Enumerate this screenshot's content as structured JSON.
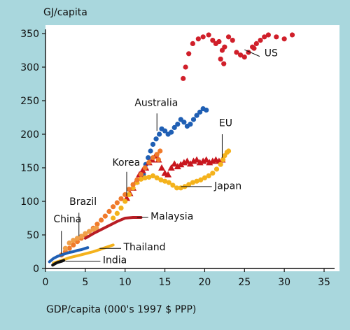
{
  "chart_data": {
    "type": "scatter",
    "ylabel": "GJ/capita",
    "xlabel": "GDP/capita (000's 1997 $ PPP)",
    "xlim": [
      0,
      35
    ],
    "ylim": [
      0,
      350
    ],
    "xticks": [
      "0",
      "5",
      "10",
      "15",
      "20",
      "25",
      "30",
      "35"
    ],
    "yticks": [
      "0",
      "50",
      "100",
      "150",
      "200",
      "250",
      "300",
      "350"
    ],
    "grid": false,
    "series": [
      {
        "name": "US",
        "color": "#d01f2a",
        "marker": "dot",
        "label_at": [
          27.5,
          316
        ],
        "points": [
          [
            17.3,
            283
          ],
          [
            17.6,
            300
          ],
          [
            18.0,
            320
          ],
          [
            18.5,
            335
          ],
          [
            19.2,
            342
          ],
          [
            19.8,
            345
          ],
          [
            20.5,
            348
          ],
          [
            21.0,
            340
          ],
          [
            21.4,
            335
          ],
          [
            21.8,
            338
          ],
          [
            22.2,
            325
          ],
          [
            22.5,
            330
          ],
          [
            23.0,
            345
          ],
          [
            23.5,
            340
          ],
          [
            24.0,
            322
          ],
          [
            24.5,
            318
          ],
          [
            25.0,
            315
          ],
          [
            25.5,
            322
          ],
          [
            26.0,
            330
          ],
          [
            26.5,
            335
          ],
          [
            27.0,
            340
          ],
          [
            27.5,
            345
          ],
          [
            28.0,
            348
          ],
          [
            29.0,
            345
          ],
          [
            30.0,
            342
          ],
          [
            31.0,
            348
          ],
          [
            22.0,
            312
          ],
          [
            22.4,
            305
          ],
          [
            26.2,
            328
          ]
        ]
      },
      {
        "name": "Australia",
        "color": "#1f5fb4",
        "marker": "dot",
        "label_at": [
          11.2,
          242
        ],
        "points": [
          [
            12.3,
            140
          ],
          [
            12.6,
            155
          ],
          [
            12.9,
            165
          ],
          [
            13.2,
            175
          ],
          [
            13.5,
            185
          ],
          [
            13.9,
            193
          ],
          [
            14.3,
            200
          ],
          [
            14.6,
            208
          ],
          [
            15.0,
            205
          ],
          [
            15.4,
            200
          ],
          [
            15.8,
            203
          ],
          [
            16.2,
            210
          ],
          [
            16.6,
            215
          ],
          [
            17.0,
            222
          ],
          [
            17.4,
            218
          ],
          [
            17.8,
            212
          ],
          [
            18.2,
            215
          ],
          [
            18.6,
            222
          ],
          [
            19.0,
            228
          ],
          [
            19.4,
            233
          ],
          [
            19.8,
            238
          ],
          [
            20.2,
            236
          ]
        ]
      },
      {
        "name": "EU",
        "color": "#c8161e",
        "marker": "triangle",
        "label_at": [
          21.8,
          212
        ],
        "points": [
          [
            10.2,
            105
          ],
          [
            10.6,
            112
          ],
          [
            11.0,
            120
          ],
          [
            11.4,
            130
          ],
          [
            11.8,
            140
          ],
          [
            12.2,
            146
          ],
          [
            12.6,
            150
          ],
          [
            13.0,
            158
          ],
          [
            13.4,
            162
          ],
          [
            13.8,
            168
          ],
          [
            14.2,
            162
          ],
          [
            14.6,
            150
          ],
          [
            15.0,
            142
          ],
          [
            15.4,
            140
          ],
          [
            15.8,
            150
          ],
          [
            16.2,
            156
          ],
          [
            16.6,
            152
          ],
          [
            17.0,
            155
          ],
          [
            17.4,
            158
          ],
          [
            17.8,
            160
          ],
          [
            18.2,
            156
          ],
          [
            18.6,
            160
          ],
          [
            19.0,
            162
          ],
          [
            19.4,
            158
          ],
          [
            19.8,
            160
          ],
          [
            20.2,
            162
          ],
          [
            20.6,
            158
          ],
          [
            21.0,
            160
          ],
          [
            21.4,
            162
          ],
          [
            21.8,
            160
          ],
          [
            22.2,
            162
          ]
        ]
      },
      {
        "name": "Japan",
        "color": "#f4b21c",
        "marker": "dot",
        "label_at": [
          21.2,
          118
        ],
        "points": [
          [
            8.5,
            75
          ],
          [
            9.0,
            82
          ],
          [
            9.5,
            90
          ],
          [
            10.0,
            100
          ],
          [
            10.5,
            110
          ],
          [
            11.0,
            120
          ],
          [
            11.5,
            128
          ],
          [
            12.0,
            133
          ],
          [
            12.5,
            135
          ],
          [
            13.0,
            136
          ],
          [
            13.5,
            138
          ],
          [
            14.0,
            135
          ],
          [
            14.5,
            132
          ],
          [
            15.0,
            130
          ],
          [
            15.5,
            128
          ],
          [
            16.0,
            124
          ],
          [
            16.5,
            120
          ],
          [
            17.0,
            120
          ],
          [
            17.5,
            122
          ],
          [
            18.0,
            125
          ],
          [
            18.5,
            128
          ],
          [
            19.0,
            130
          ],
          [
            19.5,
            132
          ],
          [
            20.0,
            135
          ],
          [
            20.5,
            138
          ],
          [
            21.0,
            142
          ],
          [
            21.5,
            148
          ],
          [
            22.0,
            155
          ],
          [
            22.3,
            162
          ],
          [
            22.5,
            168
          ],
          [
            22.8,
            173
          ],
          [
            23.0,
            175
          ]
        ]
      },
      {
        "name": "Korea",
        "color": "#f07a2a",
        "marker": "dot",
        "label_at": [
          8.4,
          153
        ],
        "points": [
          [
            2.0,
            20
          ],
          [
            2.5,
            25
          ],
          [
            3.0,
            30
          ],
          [
            3.5,
            35
          ],
          [
            4.0,
            40
          ],
          [
            4.5,
            45
          ],
          [
            5.0,
            50
          ],
          [
            5.5,
            55
          ],
          [
            6.0,
            60
          ],
          [
            6.5,
            66
          ],
          [
            7.0,
            72
          ],
          [
            7.5,
            78
          ],
          [
            8.0,
            85
          ],
          [
            8.5,
            92
          ],
          [
            9.0,
            98
          ],
          [
            9.5,
            104
          ],
          [
            10.0,
            110
          ],
          [
            10.5,
            118
          ],
          [
            11.0,
            125
          ],
          [
            11.5,
            132
          ],
          [
            12.0,
            140
          ],
          [
            12.5,
            150
          ],
          [
            13.0,
            158
          ],
          [
            13.5,
            165
          ],
          [
            14.0,
            170
          ],
          [
            14.4,
            175
          ],
          [
            14.2,
            162
          ]
        ]
      },
      {
        "name": "Brazil",
        "color": "#f0a04a",
        "marker": "dot",
        "label_at": [
          3.0,
          95
        ],
        "points": [
          [
            2.5,
            30
          ],
          [
            3.0,
            38
          ],
          [
            3.5,
            42
          ],
          [
            4.0,
            45
          ],
          [
            4.5,
            48
          ],
          [
            5.0,
            52
          ],
          [
            5.5,
            55
          ],
          [
            6.0,
            58
          ],
          [
            6.4,
            60
          ]
        ]
      },
      {
        "name": "Malaysia",
        "color": "#b81d24",
        "marker": "line",
        "label_at": [
          13.2,
          73
        ],
        "points": [
          [
            5.0,
            45
          ],
          [
            6.0,
            52
          ],
          [
            7.0,
            58
          ],
          [
            8.0,
            64
          ],
          [
            9.0,
            70
          ],
          [
            10.0,
            75
          ],
          [
            11.0,
            76
          ],
          [
            12.0,
            76
          ]
        ]
      },
      {
        "name": "China",
        "color": "#1f5fb4",
        "marker": "line",
        "label_at": [
          1.0,
          69
        ],
        "points": [
          [
            0.5,
            10
          ],
          [
            1.0,
            15
          ],
          [
            1.5,
            18
          ],
          [
            2.0,
            20
          ],
          [
            2.5,
            22
          ],
          [
            3.0,
            24
          ],
          [
            3.5,
            25
          ],
          [
            4.0,
            27
          ],
          [
            4.5,
            28
          ],
          [
            5.0,
            30
          ],
          [
            5.3,
            31
          ]
        ]
      },
      {
        "name": "Thailand",
        "color": "#f4b21c",
        "marker": "line",
        "label_at": [
          9.8,
          27
        ],
        "points": [
          [
            1.0,
            8
          ],
          [
            2.0,
            12
          ],
          [
            3.0,
            16
          ],
          [
            4.0,
            19
          ],
          [
            5.0,
            22
          ],
          [
            6.0,
            25
          ],
          [
            7.0,
            29
          ],
          [
            8.0,
            33
          ],
          [
            8.5,
            35
          ]
        ]
      },
      {
        "name": "India",
        "color": "#111111",
        "marker": "line",
        "label_at": [
          7.2,
          8
        ],
        "points": [
          [
            0.9,
            5
          ],
          [
            1.2,
            7
          ],
          [
            1.5,
            9
          ],
          [
            1.8,
            10
          ],
          [
            2.1,
            11
          ],
          [
            2.3,
            12
          ]
        ]
      }
    ]
  }
}
